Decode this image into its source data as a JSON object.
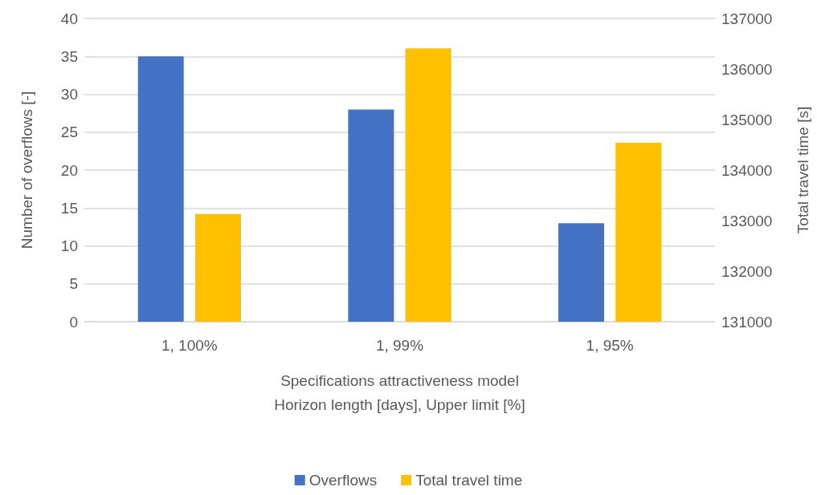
{
  "chart_data": {
    "type": "bar",
    "categories": [
      "1, 100%",
      "1, 99%",
      "1, 95%"
    ],
    "xlabel": "Specifications attractiveness model\nHorizon length [days], Upper limit [%]",
    "ylabel": "Number of overflows [-]",
    "y2label": "Total travel time [s]",
    "series": [
      {
        "name": "Overflows",
        "color": "#4472c4",
        "values": [
          35,
          28,
          13
        ]
      },
      {
        "name": "Total travel time",
        "color": "#ffc000",
        "values": [
          133130,
          136410,
          134540
        ],
        "axis": "y2"
      }
    ],
    "ylim": [
      0,
      40
    ],
    "yticks": [
      0,
      5,
      10,
      15,
      20,
      25,
      30,
      35,
      40
    ],
    "y2lim": [
      131000,
      137000
    ],
    "y2ticks": [
      131000,
      132000,
      133000,
      134000,
      135000,
      136000,
      137000
    ],
    "grid": "y",
    "legend": "bottom"
  }
}
